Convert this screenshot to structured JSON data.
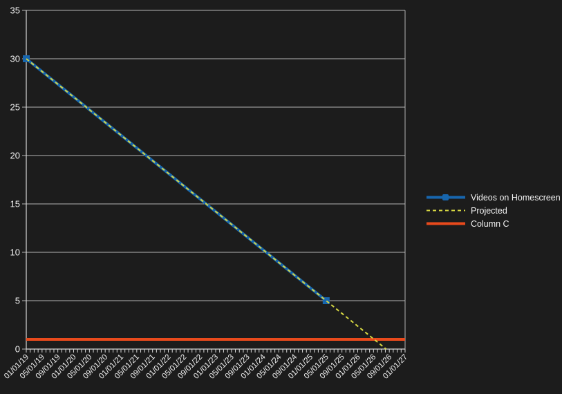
{
  "page": {
    "background_color": "#1c1c1c"
  },
  "chart_data": {
    "type": "line",
    "title": "",
    "grid": true,
    "legend_position": "right",
    "background_color": "#1c1c1c",
    "text_color": "#f2f2f2",
    "grid_color": "#b5b5b5",
    "axis_color": "#d8d8d8",
    "y_axis": {
      "min": 0,
      "max": 35,
      "tick_step": 5,
      "tick_labels": [
        "0",
        "5",
        "10",
        "15",
        "20",
        "25",
        "30",
        "35"
      ]
    },
    "x_axis": {
      "total_months": 96,
      "minor_tick_every_months": 1,
      "major_tick_every_months": 4,
      "tick_labels": [
        "01/01/19",
        "05/01/19",
        "09/01/19",
        "01/01/20",
        "05/01/20",
        "09/01/20",
        "01/01/21",
        "05/01/21",
        "09/01/21",
        "01/01/22",
        "05/01/22",
        "09/01/22",
        "01/01/23",
        "05/01/23",
        "09/01/23",
        "01/01/24",
        "05/01/24",
        "09/01/24",
        "01/01/25",
        "05/01/25",
        "09/01/25",
        "01/01/26",
        "05/01/26",
        "09/01/26",
        "01/01/27"
      ]
    },
    "series": [
      {
        "name": "Videos on Homescreen",
        "color": "#1766ae",
        "style": "solid",
        "line_width": 4,
        "marker": "square",
        "points": [
          {
            "date": "01/01/19",
            "x_months": 0,
            "value": 30
          },
          {
            "date": "05/01/25",
            "x_months": 76,
            "value": 5
          }
        ]
      },
      {
        "name": "Projected",
        "color": "#d7d843",
        "style": "dashed",
        "line_width": 2,
        "marker": "none",
        "points": [
          {
            "date": "01/01/19",
            "x_months": 0,
            "value": 30
          },
          {
            "date": "08/01/26",
            "x_months": 91.2,
            "value": 0
          }
        ]
      },
      {
        "name": "Column C",
        "color": "#e84a1c",
        "style": "solid",
        "line_width": 4,
        "marker": "none",
        "points": [
          {
            "date": "01/01/19",
            "x_months": 0,
            "value": 1
          },
          {
            "date": "01/01/27",
            "x_months": 96,
            "value": 1
          }
        ]
      }
    ]
  }
}
